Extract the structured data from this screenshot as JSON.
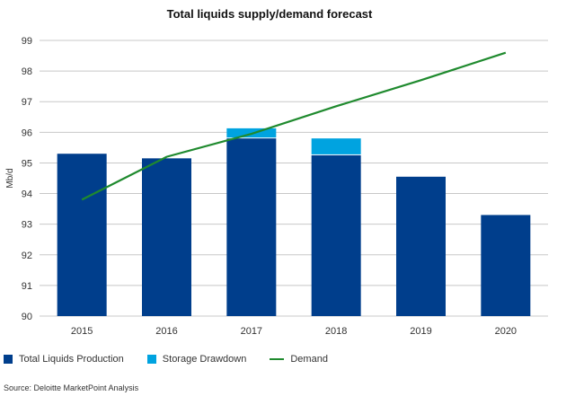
{
  "chart_data": {
    "type": "bar",
    "title": "Total liquids supply/demand forecast",
    "ylabel": "Mb/d",
    "xlabel": "",
    "categories": [
      "2015",
      "2016",
      "2017",
      "2018",
      "2019",
      "2020"
    ],
    "ylim": [
      90,
      99
    ],
    "yticks": [
      90,
      91,
      92,
      93,
      94,
      95,
      96,
      97,
      98,
      99
    ],
    "grid": true,
    "legend_position": "bottom",
    "series": [
      {
        "name": "Total Liquids Production",
        "kind": "bar",
        "stack": "supply",
        "color": "#003e8c",
        "values": [
          95.3,
          95.15,
          95.8,
          95.25,
          94.55,
          93.3
        ]
      },
      {
        "name": "Storage Drawdown",
        "kind": "bar",
        "stack": "supply",
        "color": "#00a3e0",
        "values": [
          0,
          0,
          0.33,
          0.55,
          0,
          0
        ]
      },
      {
        "name": "Demand",
        "kind": "line",
        "color": "#1f8a2e",
        "x": [
          "2015",
          "2016",
          "2017",
          "2018",
          "2019",
          "2020"
        ],
        "values": [
          93.8,
          95.2,
          95.95,
          96.85,
          97.7,
          98.6
        ]
      }
    ]
  },
  "source": "Source: Deloitte MarketPoint Analysis"
}
